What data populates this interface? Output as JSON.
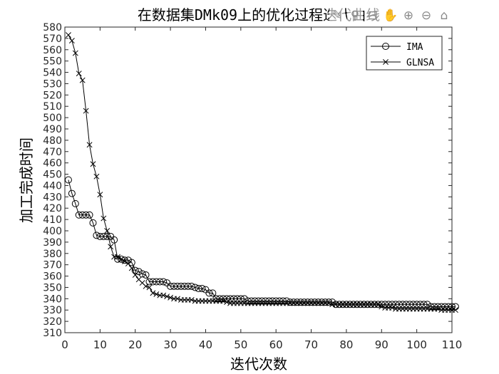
{
  "toolbar": {
    "items": [
      {
        "name": "brush-icon",
        "glyph": "✎"
      },
      {
        "name": "data-tip-icon",
        "glyph": "⚲"
      },
      {
        "name": "export-icon",
        "glyph": "⊟"
      },
      {
        "name": "pan-hand-icon",
        "glyph": "✋"
      },
      {
        "name": "zoom-in-icon",
        "glyph": "⊕"
      },
      {
        "name": "zoom-out-icon",
        "glyph": "⊖"
      },
      {
        "name": "home-icon",
        "glyph": "⌂"
      }
    ]
  },
  "chart_data": {
    "type": "line",
    "title": "在数据集DMk09上的优化过程迭代曲线",
    "xlabel": "迭代次数",
    "ylabel": "加工完成时间",
    "xlim": [
      0,
      110
    ],
    "ylim": [
      310,
      580
    ],
    "xticks": [
      0,
      10,
      20,
      30,
      40,
      50,
      60,
      70,
      80,
      90,
      100,
      110
    ],
    "yticks": [
      310,
      320,
      330,
      340,
      350,
      360,
      370,
      380,
      390,
      400,
      410,
      420,
      430,
      440,
      450,
      460,
      470,
      480,
      490,
      500,
      510,
      520,
      530,
      540,
      550,
      560,
      570,
      580
    ],
    "grid": false,
    "legend_position": "top-right",
    "series": [
      {
        "name": "IMA",
        "marker": "circle",
        "color": "#000000",
        "y": [
          445,
          433,
          424,
          414,
          414,
          414,
          414,
          407,
          396,
          395,
          395,
          395,
          395,
          392,
          375,
          375,
          374,
          374,
          372,
          365,
          364,
          362,
          361,
          355,
          355,
          355,
          355,
          355,
          354,
          351,
          351,
          351,
          351,
          351,
          351,
          351,
          350,
          349,
          349,
          348,
          345,
          345,
          340,
          340,
          340,
          340,
          340,
          340,
          340,
          340,
          340,
          338,
          338,
          338,
          338,
          338,
          338,
          338,
          338,
          338,
          338,
          338,
          338,
          337,
          337,
          337,
          337,
          337,
          337,
          337,
          337,
          337,
          337,
          337,
          337,
          337,
          335,
          335,
          335,
          335,
          335,
          335,
          335,
          335,
          335,
          335,
          335,
          335,
          335,
          335,
          335,
          335,
          335,
          335,
          335,
          335,
          335,
          335,
          335,
          335,
          335,
          335,
          335,
          333,
          333,
          333,
          333,
          333,
          333,
          333,
          333
        ]
      },
      {
        "name": "GLNSA",
        "marker": "x",
        "color": "#000000",
        "y": [
          573,
          568,
          557,
          539,
          533,
          506,
          476,
          459,
          448,
          432,
          411,
          400,
          386,
          377,
          377,
          375,
          373,
          371,
          367,
          361,
          357,
          354,
          351,
          350,
          345,
          344,
          343,
          343,
          342,
          341,
          340,
          340,
          339,
          339,
          339,
          339,
          338,
          338,
          338,
          338,
          338,
          338,
          338,
          338,
          338,
          337,
          336,
          336,
          336,
          336,
          336,
          336,
          336,
          336,
          336,
          336,
          336,
          336,
          336,
          336,
          336,
          336,
          336,
          336,
          336,
          336,
          336,
          336,
          336,
          336,
          336,
          336,
          336,
          336,
          336,
          335,
          335,
          335,
          335,
          335,
          335,
          335,
          335,
          335,
          335,
          335,
          335,
          335,
          335,
          333,
          332,
          332,
          332,
          331,
          331,
          331,
          331,
          331,
          331,
          331,
          331,
          331,
          331,
          331,
          331,
          331,
          330,
          330,
          330,
          330,
          330
        ]
      }
    ]
  }
}
